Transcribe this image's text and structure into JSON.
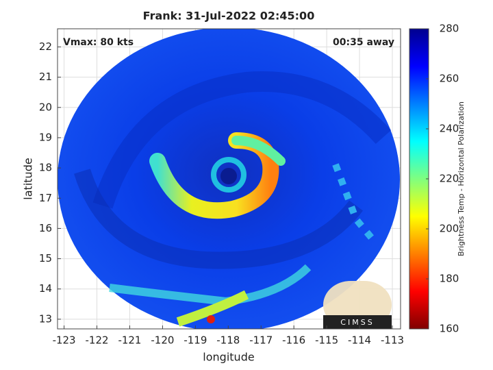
{
  "chart_data": {
    "type": "image",
    "title": "Frank: 31-Jul-2022 02:45:00",
    "xlabel": "longitude",
    "ylabel": "latitude",
    "annotations": [
      "Vmax: 80 kts",
      "00:35 away"
    ],
    "logo": "CIMSS",
    "xlim": [
      -123.2,
      -112.75
    ],
    "ylim": [
      12.68,
      22.6
    ],
    "xticks": [
      -123,
      -122,
      -121,
      -120,
      -119,
      -118,
      -117,
      -116,
      -115,
      -114,
      -113
    ],
    "yticks": [
      13,
      14,
      15,
      16,
      17,
      18,
      19,
      20,
      21,
      22
    ],
    "grid": true,
    "colorbar": {
      "label": "Brightness Temp - Horizontal Polarization",
      "colormap": "jet",
      "lim": [
        160,
        280
      ],
      "ticks": [
        160,
        180,
        200,
        220,
        240,
        260,
        280
      ]
    }
  }
}
